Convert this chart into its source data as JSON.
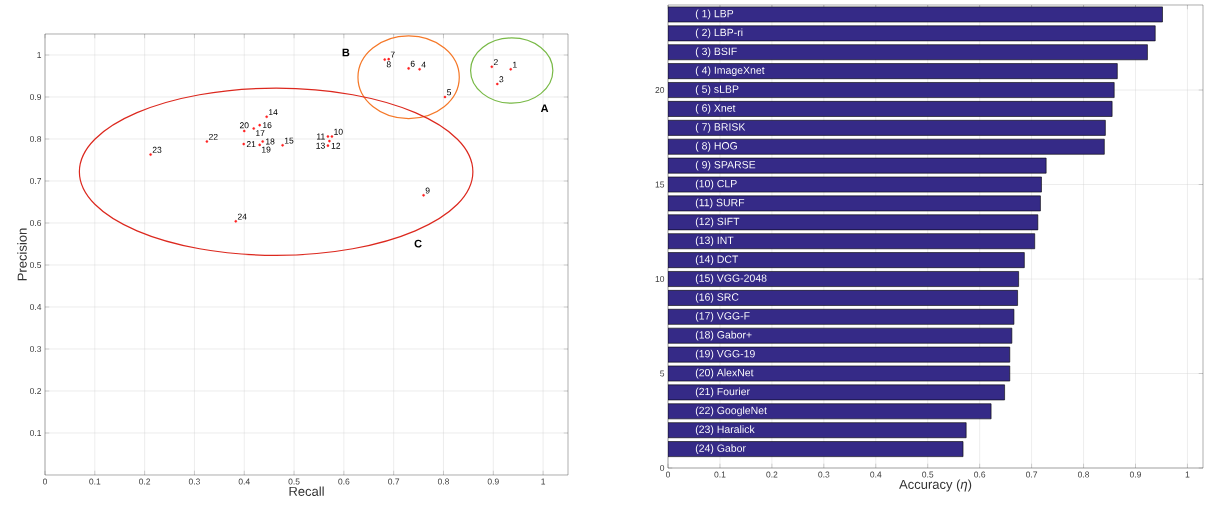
{
  "chart_data": [
    {
      "type": "scatter",
      "xlabel": "Recall",
      "ylabel": "Precision",
      "color": "#ff2020",
      "marker": "circle",
      "grid": true,
      "xlim": [
        0,
        1.05
      ],
      "ylim": [
        0,
        1.05
      ],
      "xticks": [
        0,
        0.1,
        0.2,
        0.3,
        0.4,
        0.5,
        0.6,
        0.7,
        0.8,
        0.9,
        1
      ],
      "yticks": [
        0.1,
        0.2,
        0.3,
        0.4,
        0.5,
        0.6,
        0.7,
        0.8,
        0.9,
        1
      ],
      "x": [
        0.935,
        0.897,
        0.908,
        0.752,
        0.803,
        0.73,
        0.69,
        0.682,
        0.76,
        0.576,
        0.568,
        0.571,
        0.568,
        0.445,
        0.477,
        0.431,
        0.419,
        0.437,
        0.431,
        0.4,
        0.399,
        0.325,
        0.212,
        0.383
      ],
      "values": [
        0.966,
        0.972,
        0.931,
        0.966,
        0.9,
        0.968,
        0.99,
        0.989,
        0.666,
        0.806,
        0.806,
        0.795,
        0.784,
        0.853,
        0.785,
        0.833,
        0.825,
        0.794,
        0.786,
        0.819,
        0.788,
        0.794,
        0.763,
        0.604
      ],
      "annotations": [
        {
          "text": "1",
          "x": 0.935,
          "y": 0.966
        },
        {
          "text": "2",
          "x": 0.897,
          "y": 0.972
        },
        {
          "text": "3",
          "x": 0.908,
          "y": 0.931
        },
        {
          "text": "4",
          "x": 0.752,
          "y": 0.966
        },
        {
          "text": "5",
          "x": 0.803,
          "y": 0.9
        },
        {
          "text": "6",
          "x": 0.73,
          "y": 0.968
        },
        {
          "text": "7",
          "x": 0.69,
          "y": 0.99
        },
        {
          "text": "8",
          "x": 0.682,
          "y": 0.989
        },
        {
          "text": "9",
          "x": 0.76,
          "y": 0.666
        },
        {
          "text": "10",
          "x": 0.576,
          "y": 0.806
        },
        {
          "text": "11",
          "x": 0.568,
          "y": 0.806
        },
        {
          "text": "12",
          "x": 0.571,
          "y": 0.795
        },
        {
          "text": "13",
          "x": 0.568,
          "y": 0.784
        },
        {
          "text": "14",
          "x": 0.445,
          "y": 0.853
        },
        {
          "text": "15",
          "x": 0.477,
          "y": 0.785
        },
        {
          "text": "16",
          "x": 0.431,
          "y": 0.833
        },
        {
          "text": "17",
          "x": 0.419,
          "y": 0.825
        },
        {
          "text": "18",
          "x": 0.437,
          "y": 0.794
        },
        {
          "text": "19",
          "x": 0.431,
          "y": 0.786
        },
        {
          "text": "20",
          "x": 0.4,
          "y": 0.819
        },
        {
          "text": "21",
          "x": 0.399,
          "y": 0.788
        },
        {
          "text": "22",
          "x": 0.325,
          "y": 0.794
        },
        {
          "text": "23",
          "x": 0.212,
          "y": 0.763
        },
        {
          "text": "24",
          "x": 0.383,
          "y": 0.604
        },
        "A",
        "B",
        "C"
      ]
    },
    {
      "type": "bar",
      "orientation": "horizontal",
      "xlabel": "Accuracy (*η*)",
      "color": "#352a87",
      "grid": true,
      "xlim": [
        0,
        1.03
      ],
      "ylim": [
        0,
        24.5
      ],
      "xticks": [
        0,
        0.1,
        0.2,
        0.3,
        0.4,
        0.5,
        0.6,
        0.7,
        0.8,
        0.9,
        1
      ],
      "yticks": [
        0,
        5,
        10,
        15,
        20
      ],
      "x": [
        24,
        23,
        22,
        21,
        20,
        19,
        18,
        17,
        16,
        15,
        14,
        13,
        12,
        11,
        10,
        9,
        8,
        7,
        6,
        5,
        4,
        3,
        2,
        1
      ],
      "values": [
        0.952,
        0.938,
        0.923,
        0.865,
        0.859,
        0.855,
        0.842,
        0.84,
        0.728,
        0.719,
        0.717,
        0.712,
        0.706,
        0.686,
        0.675,
        0.673,
        0.666,
        0.662,
        0.658,
        0.658,
        0.648,
        0.622,
        0.574,
        0.568
      ],
      "annotations": [
        {
          "text": "( 1) LBP",
          "x": 0,
          "y": 24
        },
        {
          "text": "( 2) LBP-ri",
          "x": 0,
          "y": 23
        },
        {
          "text": "( 3) BSIF",
          "x": 0,
          "y": 22
        },
        {
          "text": "( 4) ImageXnet",
          "x": 0,
          "y": 21
        },
        {
          "text": "( 5) sLBP",
          "x": 0,
          "y": 20
        },
        {
          "text": "( 6) Xnet",
          "x": 0,
          "y": 19
        },
        {
          "text": "( 7) BRISK",
          "x": 0,
          "y": 18
        },
        {
          "text": "( 8) HOG",
          "x": 0,
          "y": 17
        },
        {
          "text": "( 9) SPARSE",
          "x": 0,
          "y": 16
        },
        {
          "text": "(10) CLP",
          "x": 0,
          "y": 15
        },
        {
          "text": "(11) SURF",
          "x": 0,
          "y": 14
        },
        {
          "text": "(12) SIFT",
          "x": 0,
          "y": 13
        },
        {
          "text": "(13) INT",
          "x": 0,
          "y": 12
        },
        {
          "text": "(14) DCT",
          "x": 0,
          "y": 11
        },
        {
          "text": "(15) VGG-2048",
          "x": 0,
          "y": 10
        },
        {
          "text": "(16) SRC",
          "x": 0,
          "y": 9
        },
        {
          "text": "(17) VGG-F",
          "x": 0,
          "y": 8
        },
        {
          "text": "(18) Gabor+",
          "x": 0,
          "y": 7
        },
        {
          "text": "(19) VGG-19",
          "x": 0,
          "y": 6
        },
        {
          "text": "(20) AlexNet",
          "x": 0,
          "y": 5
        },
        {
          "text": "(21) Fourier",
          "x": 0,
          "y": 4
        },
        {
          "text": "(22) GoogleNet",
          "x": 0,
          "y": 3
        },
        {
          "text": "(23) Haralick",
          "x": 0,
          "y": 2
        },
        {
          "text": "(24) Gabor",
          "x": 0,
          "y": 1
        }
      ]
    }
  ]
}
